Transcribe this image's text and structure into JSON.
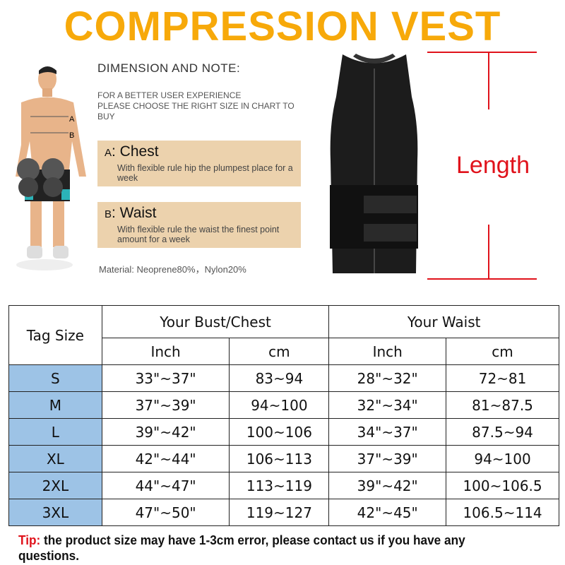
{
  "title": "COMPRESSION VEST",
  "dimension_heading": "DIMENSION AND NOTE:",
  "note": [
    "FOR A BETTER USER EXPERIENCE",
    "PLEASE CHOOSE THE RIGHT SIZE IN CHART  TO",
    "BUY"
  ],
  "figure_labels": {
    "a": "A",
    "b": "B"
  },
  "chest": {
    "letter": "A",
    "label": ": Chest",
    "desc": "With flexible rule hip the plumpest place for a week"
  },
  "waist": {
    "letter": "B",
    "label": ": Waist",
    "desc": "With flexible rule the waist the finest point amount for a week"
  },
  "material": "Material: Neoprene80%，Nylon20%",
  "length_label": "Length",
  "colors": {
    "title": "#f7a90a",
    "accent_red": "#e0121b",
    "note_box": "#ecd2ad",
    "size_cell": "#9dc3e6"
  },
  "table": {
    "tag_size": "Tag Size",
    "bust": "Your Bust/Chest",
    "waist": "Your Waist",
    "sub": [
      "Inch",
      "cm",
      "Inch",
      "cm"
    ],
    "rows": [
      [
        "S",
        "33\"~37\"",
        "83~94",
        "28\"~32\"",
        "72~81"
      ],
      [
        "M",
        "37\"~39\"",
        "94~100",
        "32\"~34\"",
        "81~87.5"
      ],
      [
        "L",
        "39\"~42\"",
        "100~106",
        "34\"~37\"",
        "87.5~94"
      ],
      [
        "XL",
        "42\"~44\"",
        "106~113",
        "37\"~39\"",
        "94~100"
      ],
      [
        "2XL",
        "44\"~47\"",
        "113~119",
        "39\"~42\"",
        "100~106.5"
      ],
      [
        "3XL",
        "47\"~50\"",
        "119~127",
        "42\"~45\"",
        "106.5~114"
      ]
    ]
  },
  "tip": {
    "label": "Tip:",
    "text": " the product size may have 1-3cm error, please contact us if you have any questions."
  }
}
